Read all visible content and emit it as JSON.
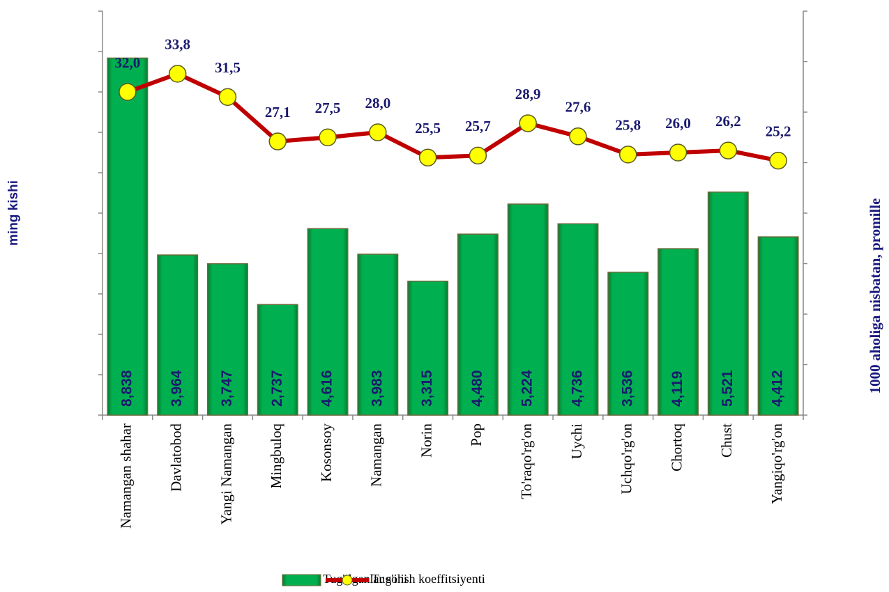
{
  "chart_data": {
    "type": "bar",
    "categories": [
      "Namangan shahar",
      "Davlatobod",
      "Yangi Namangan",
      "Mingbuloq",
      "Kosonsoy",
      "Namangan",
      "Norin",
      "Pop",
      "To'raqo'rg'on",
      "Uychi",
      "Uchqo'rg'on",
      "Chortoq",
      "Chust",
      "Yangiqo'rg'on"
    ],
    "series": [
      {
        "name": "Tug'ilganlar soni",
        "type": "bar",
        "color": "#00b050",
        "values": [
          8.838,
          3.964,
          3.747,
          2.737,
          4.616,
          3.983,
          3.315,
          4.48,
          5.224,
          4.736,
          3.536,
          4.119,
          5.521,
          4.412
        ],
        "value_labels": [
          "8,838",
          "3,964",
          "3,747",
          "2,737",
          "4,616",
          "3,983",
          "3,315",
          "4,480",
          "5,224",
          "4,736",
          "3,536",
          "4,119",
          "5,521",
          "4,412"
        ]
      },
      {
        "name": "Tug'ilish koeffitsiyenti",
        "type": "line",
        "axis": "y2",
        "color": "#c00000",
        "marker_color": "#ffff00",
        "values": [
          32.0,
          33.8,
          31.5,
          27.1,
          27.5,
          28.0,
          25.5,
          25.7,
          28.9,
          27.6,
          25.8,
          26.0,
          26.2,
          25.2
        ],
        "value_labels": [
          "32,0",
          "33,8",
          "31,5",
          "27,1",
          "27,5",
          "28,0",
          "25,5",
          "25,7",
          "28,9",
          "27,6",
          "25,8",
          "26,0",
          "26,2",
          "25,2"
        ]
      }
    ],
    "y_label": "ming kishi",
    "y2_label": "1000 aholiga nisbatan, promille",
    "ylim": [
      0,
      10
    ],
    "yticks": [
      0,
      1,
      2,
      3,
      4,
      5,
      6,
      7,
      8,
      9,
      10
    ],
    "y2lim": [
      0,
      40
    ],
    "y2ticks": [
      0,
      5,
      10,
      15,
      20,
      25,
      30,
      35,
      40
    ],
    "legend": "bottom"
  }
}
